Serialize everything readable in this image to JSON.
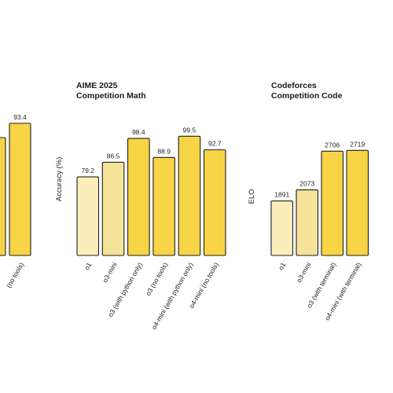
{
  "chart_data": [
    {
      "type": "bar",
      "title": "",
      "ylabel": "",
      "categories": [
        "",
        "(no tools)"
      ],
      "values": [
        null,
        93.4
      ],
      "value_labels": [
        "",
        "93.4"
      ],
      "partial": true,
      "colors": [
        "#f7d445",
        "#f7d445"
      ],
      "ylim": [
        0,
        100
      ]
    },
    {
      "type": "bar",
      "title_lines": [
        "AIME 2025",
        "Competition Math"
      ],
      "ylabel": "Accuracy (%)",
      "categories": [
        "o1",
        "o3-mini",
        "o3 (with python only)",
        "o3 (no tools)",
        "o4-mini (with python only)",
        "o4-mini (no tools)"
      ],
      "values": [
        79.2,
        86.5,
        98.4,
        88.9,
        99.5,
        92.7
      ],
      "value_labels": [
        "79.2",
        "86.5",
        "98.4",
        "88.9",
        "99.5",
        "92.7"
      ],
      "colors": [
        "#fbeebb",
        "#f6e39a",
        "#f7d445",
        "#f7d445",
        "#f7d445",
        "#f7d445"
      ],
      "ylim": [
        0,
        100
      ]
    },
    {
      "type": "bar",
      "title_lines": [
        "Codeforces",
        "Competition Code"
      ],
      "ylabel": "ELO",
      "categories": [
        "o1",
        "o3-mini",
        "o3 (with terminal)",
        "o4-mini (with terminal)"
      ],
      "values": [
        1891,
        2073,
        2706,
        2719
      ],
      "value_labels": [
        "1891",
        "2073",
        "2706",
        "2719"
      ],
      "colors": [
        "#fbeebb",
        "#f6e39a",
        "#f7d445",
        "#f7d445"
      ],
      "ylim": [
        0,
        2800
      ]
    }
  ]
}
